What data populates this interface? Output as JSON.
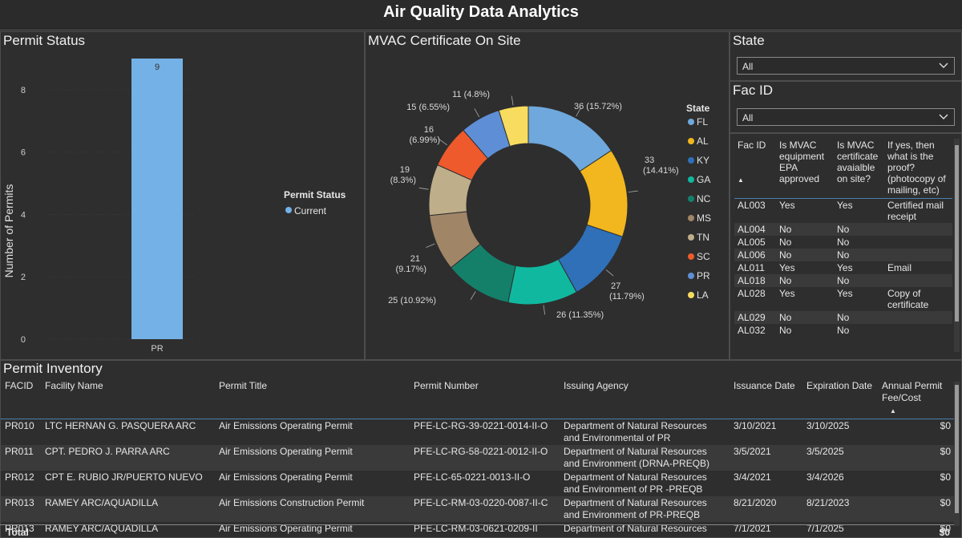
{
  "header": {
    "title": "Air Quality Data Analytics"
  },
  "permit_status": {
    "title": "Permit Status",
    "legend_title": "Permit Status",
    "legend_item": "Current",
    "legend_color": "#74b1e6",
    "chart_data": {
      "type": "bar",
      "categories": [
        "PR"
      ],
      "values": [
        9
      ],
      "ylabel": "Number of Permits",
      "xlabel": "",
      "ylim": [
        0,
        9
      ],
      "yticks": [
        "0",
        "2",
        "4",
        "6",
        "8"
      ],
      "data_labels": [
        "9"
      ]
    }
  },
  "mvac": {
    "title": "MVAC Certificate On Site",
    "legend_title": "State",
    "chart_data": {
      "type": "pie",
      "variant": "donut",
      "series": [
        {
          "name": "FL",
          "value": 36,
          "label": "36 (15.72%)",
          "color": "#6fa8dc"
        },
        {
          "name": "AL",
          "value": 33,
          "label": "33 (14.41%)",
          "color": "#f2b71e"
        },
        {
          "name": "KY",
          "value": 27,
          "label": "27 (11.79%)",
          "color": "#2f70b8"
        },
        {
          "name": "GA",
          "value": 26,
          "label": "26 (11.35%)",
          "color": "#11b8a0"
        },
        {
          "name": "NC",
          "value": 25,
          "label": "25 (10.92%)",
          "color": "#14806a"
        },
        {
          "name": "MS",
          "value": 21,
          "label": "21 (9.17%)",
          "color": "#a08567"
        },
        {
          "name": "TN",
          "value": 19,
          "label": "19 (8.3%)",
          "color": "#bfae8a"
        },
        {
          "name": "SC",
          "value": 16,
          "label": "16 (6.99%)",
          "color": "#ee5a2c"
        },
        {
          "name": "PR",
          "value": 15,
          "label": "15 (6.55%)",
          "color": "#5e8fd6"
        },
        {
          "name": "LA",
          "value": 11,
          "label": "11 (4.8%)",
          "color": "#f7dc5f"
        }
      ]
    }
  },
  "state_filter": {
    "title": "State",
    "value": "All"
  },
  "fac_filter": {
    "title": "Fac ID",
    "value": "All"
  },
  "fac_table": {
    "headers": [
      "Fac ID",
      "Is MVAC equipment EPA approved",
      "Is MVAC certificate avaialble on site?",
      "If yes, then what is the proof? (photocopy of mailing, etc)"
    ],
    "rows": [
      {
        "id": "AL003",
        "epa": "Yes",
        "cert": "Yes",
        "proof": "Certified mail receipt"
      },
      {
        "id": "AL004",
        "epa": "No",
        "cert": "No",
        "proof": ""
      },
      {
        "id": "AL005",
        "epa": "No",
        "cert": "No",
        "proof": ""
      },
      {
        "id": "AL006",
        "epa": "No",
        "cert": "No",
        "proof": ""
      },
      {
        "id": "AL011",
        "epa": "Yes",
        "cert": "Yes",
        "proof": "Email"
      },
      {
        "id": "AL018",
        "epa": "No",
        "cert": "No",
        "proof": ""
      },
      {
        "id": "AL028",
        "epa": "Yes",
        "cert": "Yes",
        "proof": "Copy of certificate"
      },
      {
        "id": "AL029",
        "epa": "No",
        "cert": "No",
        "proof": ""
      },
      {
        "id": "AL032",
        "epa": "No",
        "cert": "No",
        "proof": ""
      }
    ]
  },
  "inventory": {
    "title": "Permit Inventory",
    "headers": [
      "FACID",
      "Facility Name",
      "Permit Title",
      "Permit Number",
      "Issuing Agency",
      "Issuance Date",
      "Expiration Date",
      "Annual Permit Fee/Cost"
    ],
    "rows": [
      {
        "facid": "PR010",
        "name": "LTC HERNAN G. PASQUERA ARC",
        "title": "Air Emissions Operating Permit",
        "number": "PFE-LC-RG-39-0221-0014-II-O",
        "agency1": "Department of Natural Resources",
        "agency2": "and Environmental of PR",
        "issued": "3/10/2021",
        "expires": "3/10/2025",
        "fee": "$0"
      },
      {
        "facid": "PR011",
        "name": "CPT. PEDRO J. PARRA ARC",
        "title": "Air Emissions Operating Permit",
        "number": "PFE-LC-RG-58-0221-0012-II-O",
        "agency1": "Department of Natural Resources",
        "agency2": "and Environment (DRNA-PREQB)",
        "issued": "3/5/2021",
        "expires": "3/5/2025",
        "fee": "$0"
      },
      {
        "facid": "PR012",
        "name": "CPT E. RUBIO JR/PUERTO NUEVO",
        "title": "Air Emissions Operating Permit",
        "number": "PFE-LC-65-0221-0013-II-O",
        "agency1": "Department of Natural Resources",
        "agency2": "and Environment of PR -PREQB",
        "issued": "3/4/2021",
        "expires": "3/4/2026",
        "fee": "$0"
      },
      {
        "facid": "PR013",
        "name": "RAMEY ARC/AQUADILLA",
        "title": "Air Emissions Construction Permit",
        "number": "PFE-LC-RM-03-0220-0087-II-C",
        "agency1": "Department of Natural Resources",
        "agency2": "and Environment of PR-PREQB",
        "issued": "8/21/2020",
        "expires": "8/21/2023",
        "fee": "$0"
      },
      {
        "facid": "PR013",
        "name": "RAMEY ARC/AQUADILLA",
        "title": "Air Emissions Operating Permit",
        "number": "PFE-LC-RM-03-0621-0209-II",
        "agency1": "Department of Natural Resources",
        "agency2": "",
        "issued": "7/1/2021",
        "expires": "7/1/2025",
        "fee": "$0"
      }
    ],
    "total_label": "Total",
    "total_value": "$0"
  }
}
